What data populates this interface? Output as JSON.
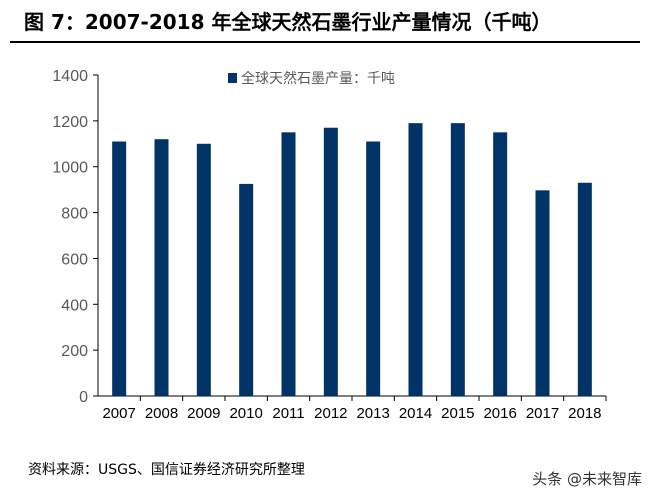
{
  "title": "图 7：2007-2018 年全球天然石墨行业产量情况（千吨）",
  "source": "资料来源：USGS、国信证券经济研究所整理",
  "watermark": "头条 @未来智库",
  "chart_data": {
    "type": "bar",
    "categories": [
      "2007",
      "2008",
      "2009",
      "2010",
      "2011",
      "2012",
      "2013",
      "2014",
      "2015",
      "2016",
      "2017",
      "2018"
    ],
    "series": [
      {
        "name": "全球天然石墨产量：千吨",
        "values": [
          1110,
          1120,
          1100,
          925,
          1150,
          1170,
          1110,
          1190,
          1190,
          1150,
          897,
          930
        ],
        "color": "#003366"
      }
    ],
    "ylim": [
      0,
      1400
    ],
    "yticks": [
      0,
      200,
      400,
      600,
      800,
      1000,
      1200,
      1400
    ],
    "grid": false,
    "legend": "top-center"
  }
}
